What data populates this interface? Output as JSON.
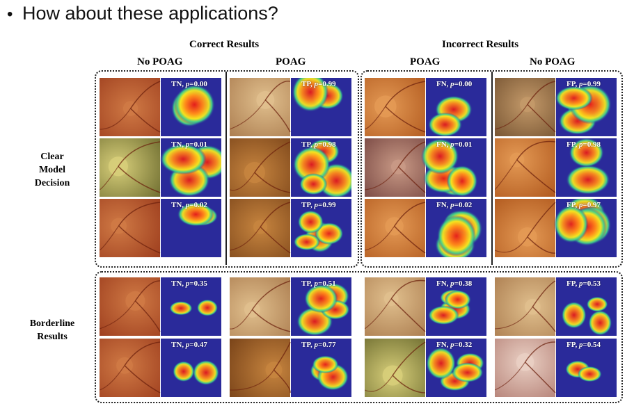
{
  "slide": {
    "bullet": "•",
    "title": "How about these applications?"
  },
  "headers": {
    "correct": "Correct Results",
    "incorrect": "Incorrect Results",
    "col_no_poag_1": "No POAG",
    "col_poag_1": "POAG",
    "col_poag_2": "POAG",
    "col_no_poag_2": "No POAG"
  },
  "row_labels": {
    "clear": [
      "Clear",
      "Model",
      "Decision"
    ],
    "borderline": [
      "Borderline",
      "Results"
    ]
  },
  "colors": {
    "fundus_dark": "#8a3a14",
    "fundus_light": "#d99a58",
    "heat_bg": "#2a2a9a",
    "heat_hot": "#e31a1c"
  },
  "cells": [
    {
      "cls": "TN",
      "p": "0.00",
      "tone": "red",
      "hot": 0.9
    },
    {
      "cls": "TP",
      "p": "0.99",
      "tone": "beige",
      "hot": 0.5
    },
    {
      "cls": "FN",
      "p": "0.00",
      "tone": "orange",
      "hot": 0.6
    },
    {
      "cls": "FP",
      "p": "0.99",
      "tone": "dark",
      "hot": 0.7
    },
    {
      "cls": "TN",
      "p": "0.01",
      "tone": "olive",
      "hot": 0.8
    },
    {
      "cls": "TP",
      "p": "0.98",
      "tone": "brown",
      "hot": 0.6
    },
    {
      "cls": "FN",
      "p": "0.01",
      "tone": "purple",
      "hot": 0.6
    },
    {
      "cls": "FP",
      "p": "0.98",
      "tone": "orange",
      "hot": 0.7
    },
    {
      "cls": "TN",
      "p": "0.02",
      "tone": "red",
      "hot": 0.7
    },
    {
      "cls": "TP",
      "p": "0.99",
      "tone": "brown",
      "hot": 0.5
    },
    {
      "cls": "FN",
      "p": "0.02",
      "tone": "orange",
      "hot": 0.6
    },
    {
      "cls": "FP",
      "p": "0.97",
      "tone": "orange",
      "hot": 0.6
    },
    {
      "cls": "TN",
      "p": "0.35",
      "tone": "red",
      "hot": 0.3
    },
    {
      "cls": "TP",
      "p": "0.51",
      "tone": "beige",
      "hot": 0.6
    },
    {
      "cls": "FN",
      "p": "0.38",
      "tone": "beige",
      "hot": 0.4
    },
    {
      "cls": "FP",
      "p": "0.53",
      "tone": "beige",
      "hot": 0.3
    },
    {
      "cls": "TN",
      "p": "0.47",
      "tone": "red",
      "hot": 0.3
    },
    {
      "cls": "TP",
      "p": "0.77",
      "tone": "brown",
      "hot": 0.5
    },
    {
      "cls": "FN",
      "p": "0.32",
      "tone": "olive",
      "hot": 0.5
    },
    {
      "cls": "FP",
      "p": "0.54",
      "tone": "pink",
      "hot": 0.3
    }
  ]
}
